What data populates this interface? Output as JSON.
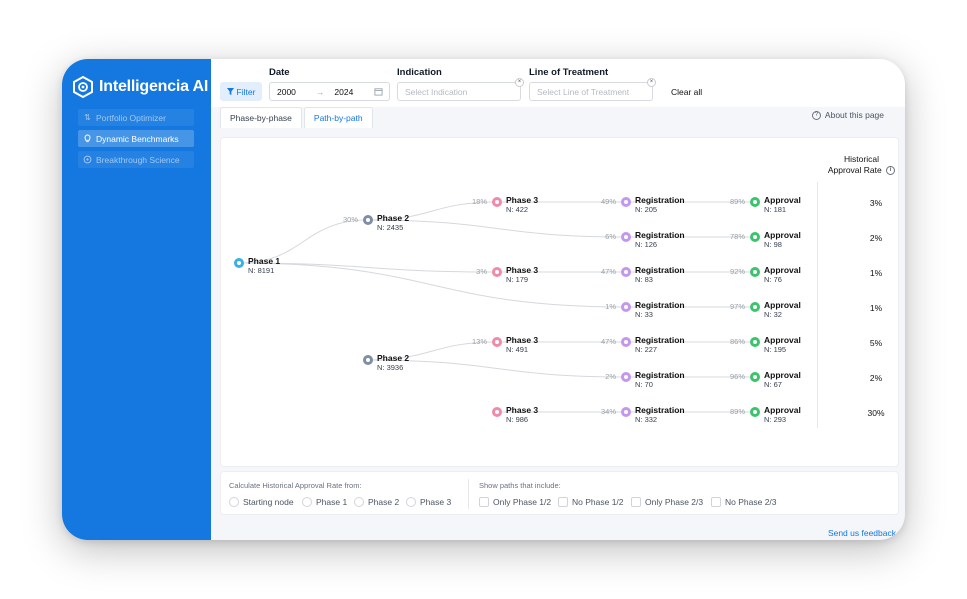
{
  "app": {
    "brand": "Intelligencia AI"
  },
  "sidebar": {
    "items": [
      {
        "label": "Portfolio Optimizer",
        "icon": "sort-arrows-icon",
        "active": false
      },
      {
        "label": "Dynamic Benchmarks",
        "icon": "lightbulb-icon",
        "active": true
      },
      {
        "label": "Breakthrough Science",
        "icon": "atom-icon",
        "active": false
      }
    ]
  },
  "filters": {
    "filter_label": "Filter",
    "date": {
      "label": "Date",
      "from": "2000",
      "arrow": "→",
      "to": "2024"
    },
    "indication": {
      "label": "Indication",
      "placeholder": "Select Indication"
    },
    "line_of_treatment": {
      "label": "Line of Treatment",
      "placeholder": "Select Line of Treatment"
    },
    "clear_label": "Clear all"
  },
  "tabs": [
    {
      "label": "Phase-by-phase",
      "active": false
    },
    {
      "label": "Path-by-path",
      "active": true
    }
  ],
  "about_label": "About this page",
  "tree": {
    "header_line1": "Historical",
    "header_line2": "Approval Rate",
    "colors": {
      "phase1": "#3ab0e6",
      "phase2": "#7d8ea8",
      "phase3": "#f08aa8",
      "registration": "#c596f0",
      "approval": "#3cc46d",
      "edge": "#d5d8dd"
    },
    "nodes": {
      "p1": {
        "name": "Phase 1",
        "n": "N: 8191"
      },
      "p2a": {
        "name": "Phase 2",
        "n": "N: 2435"
      },
      "p2b": {
        "name": "Phase 2",
        "n": "N: 3936"
      },
      "p3_1": {
        "name": "Phase 3",
        "n": "N: 422"
      },
      "p3_2": {
        "name": "Phase 3",
        "n": "N: 179"
      },
      "p3_3": {
        "name": "Phase 3",
        "n": "N: 491"
      },
      "p3_4": {
        "name": "Phase 3",
        "n": "N: 986"
      },
      "r1": {
        "name": "Registration",
        "n": "N: 205"
      },
      "r2": {
        "name": "Registration",
        "n": "N: 126"
      },
      "r3": {
        "name": "Registration",
        "n": "N: 83"
      },
      "r4": {
        "name": "Registration",
        "n": "N: 33"
      },
      "r5": {
        "name": "Registration",
        "n": "N: 227"
      },
      "r6": {
        "name": "Registration",
        "n": "N: 70"
      },
      "r7": {
        "name": "Registration",
        "n": "N: 332"
      },
      "a1": {
        "name": "Approval",
        "n": "N: 181"
      },
      "a2": {
        "name": "Approval",
        "n": "N: 98"
      },
      "a3": {
        "name": "Approval",
        "n": "N: 76"
      },
      "a4": {
        "name": "Approval",
        "n": "N: 32"
      },
      "a5": {
        "name": "Approval",
        "n": "N: 195"
      },
      "a6": {
        "name": "Approval",
        "n": "N: 67"
      },
      "a7": {
        "name": "Approval",
        "n": "N: 293"
      }
    },
    "transitions": {
      "p1_p2a": "30%",
      "p2a_p3_1": "18%",
      "p3_1_r1": "49%",
      "r1_a1": "89%",
      "p2a_r2": "6%",
      "r2_a2": "78%",
      "p1_p3_2": "3%",
      "p3_2_r3": "47%",
      "r3_a3": "92%",
      "p1_r4": "1%",
      "r4_a4": "97%",
      "p2b_p3_3": "13%",
      "p3_3_r5": "47%",
      "r5_a5": "86%",
      "p2b_r6": "2%",
      "r6_a6": "96%",
      "p3_4_r7": "34%",
      "r7_a7": "89%"
    },
    "rates": [
      "3%",
      "2%",
      "1%",
      "1%",
      "5%",
      "2%",
      "30%"
    ]
  },
  "bottom": {
    "calc_title": "Calculate Historical Approval Rate from:",
    "calc_options": [
      "Starting node",
      "Phase 1",
      "Phase 2",
      "Phase 3"
    ],
    "paths_title": "Show paths that include:",
    "path_options": [
      "Only Phase 1/2",
      "No Phase 1/2",
      "Only Phase 2/3",
      "No Phase 2/3"
    ]
  },
  "feedback_label": "Send us feedback"
}
